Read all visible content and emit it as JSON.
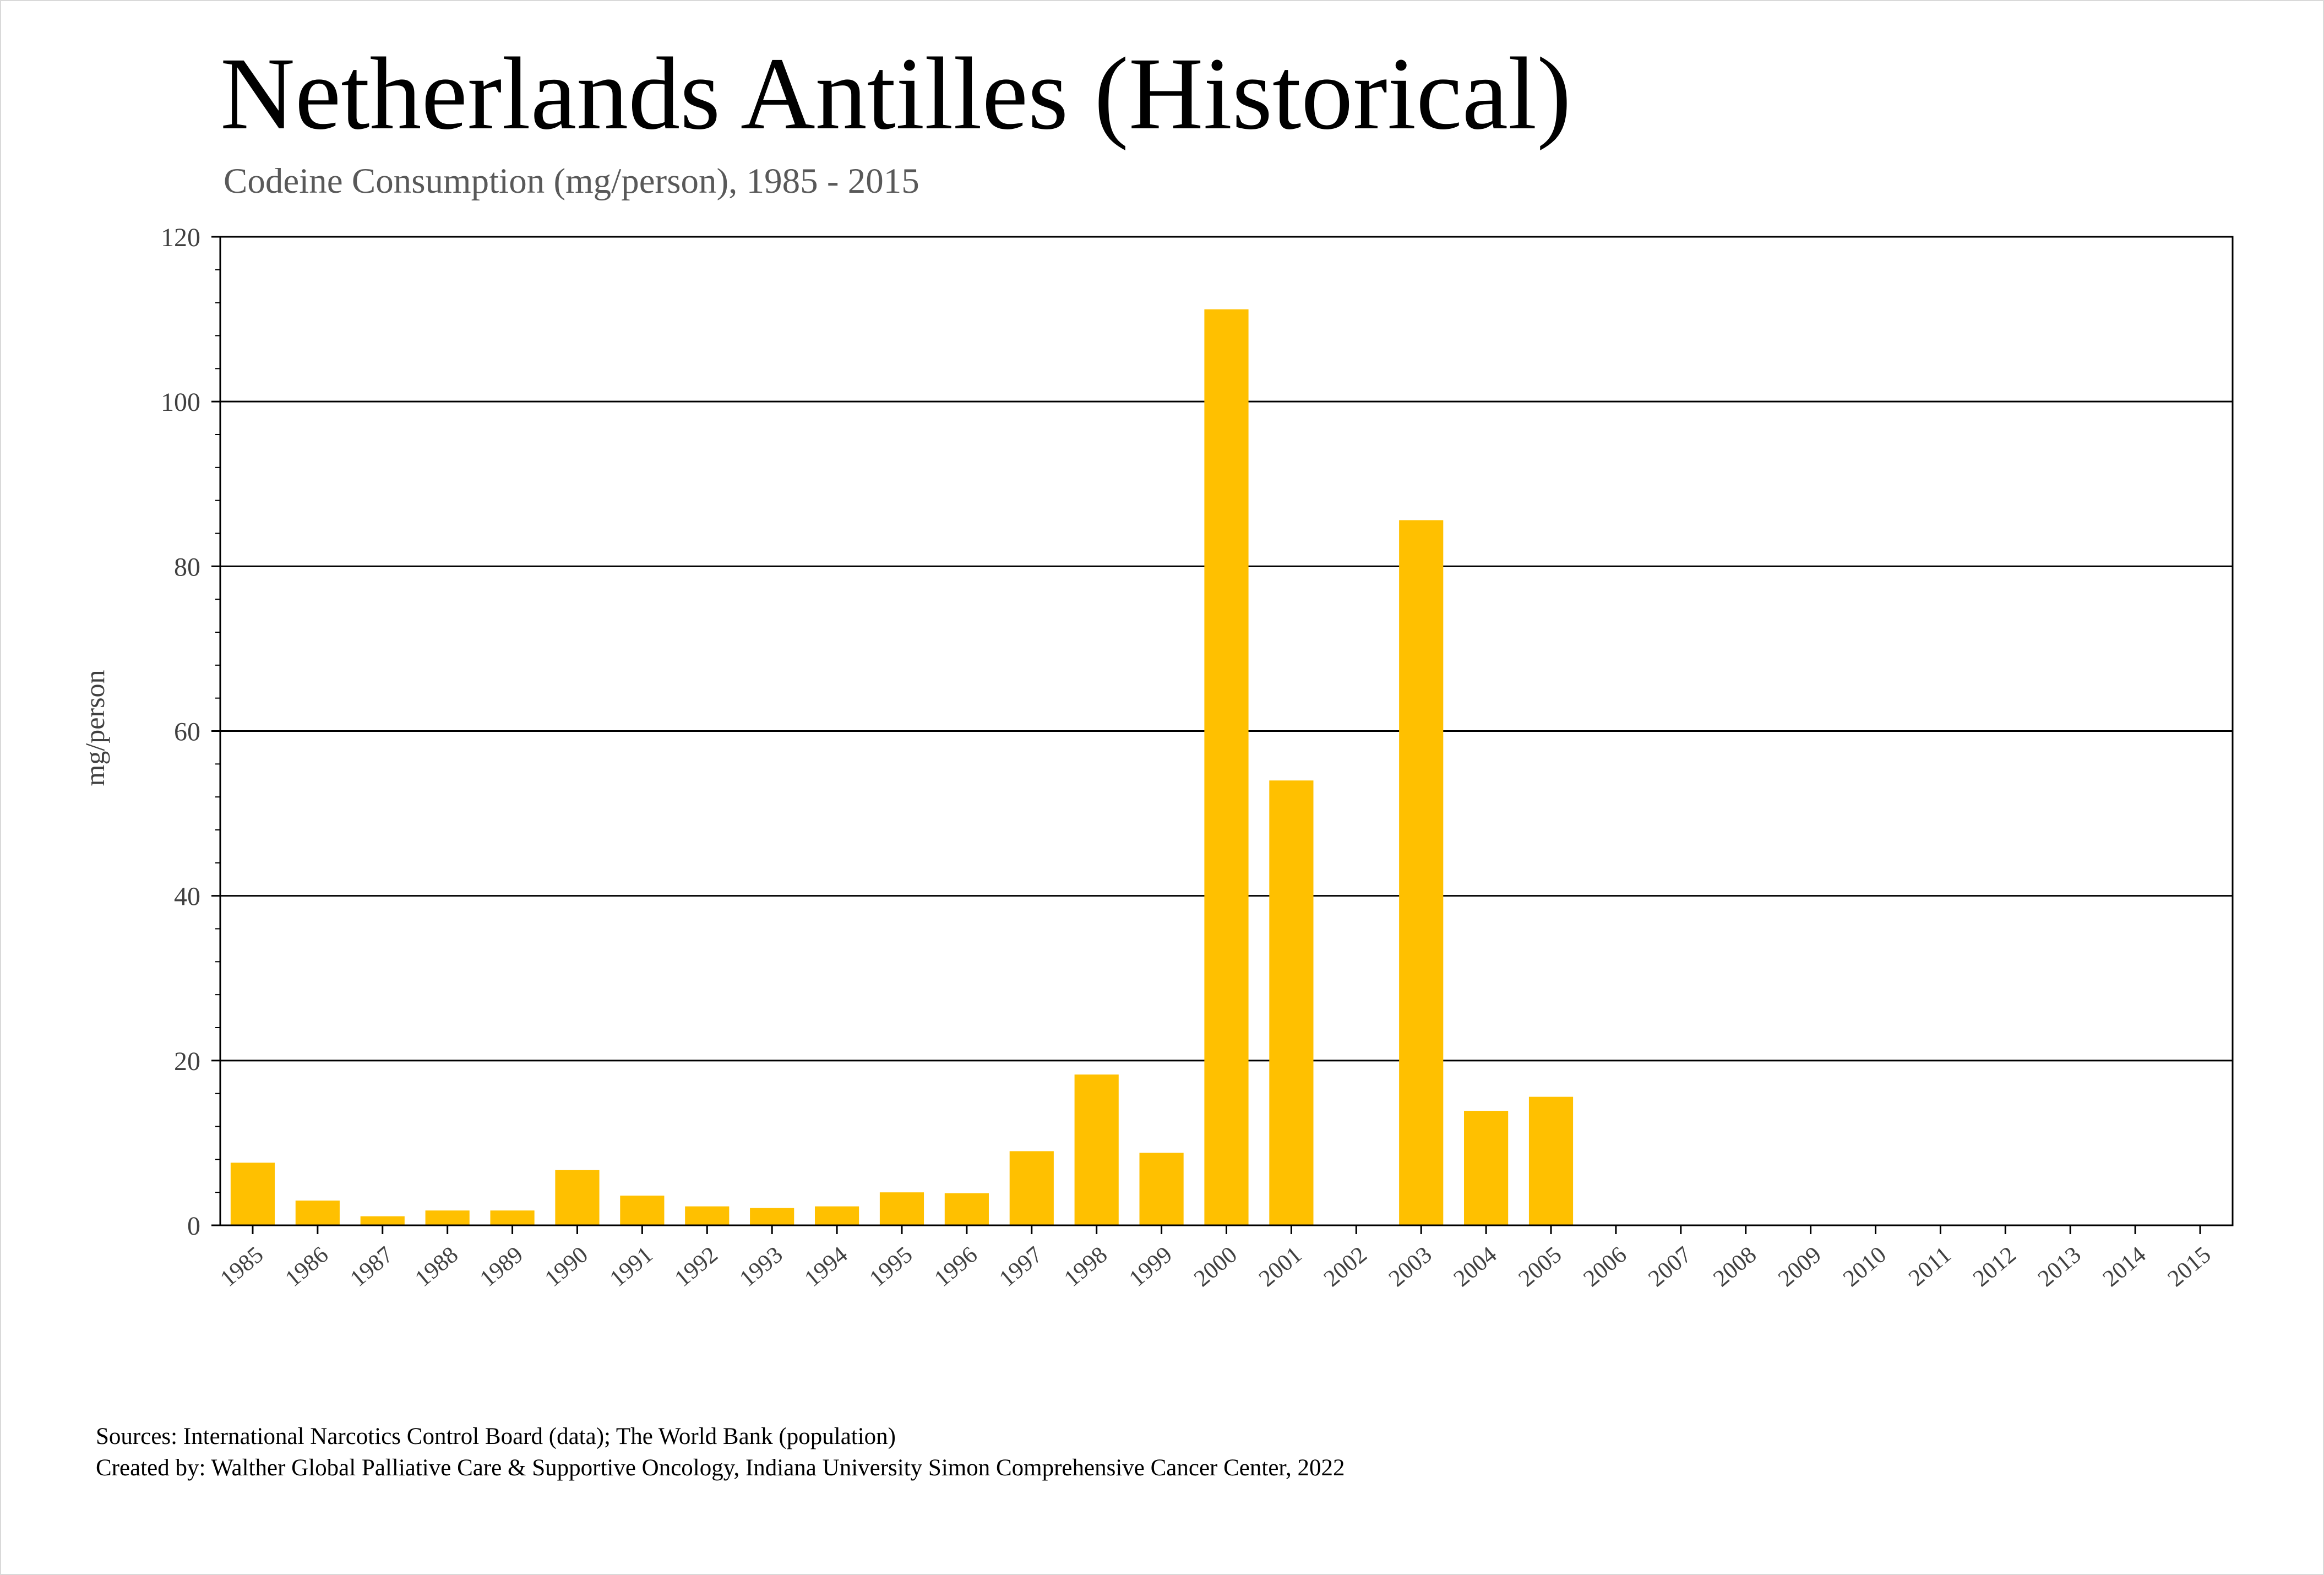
{
  "page": {
    "title": "Netherlands Antilles (Historical)",
    "subtitle": "Codeine Consumption (mg/person), 1985 - 2015",
    "source_line": "Sources: International Narcotics Control Board (data); The World Bank (population)",
    "credit_line": "Created by: Walther Global Palliative Care & Supportive Oncology, Indiana University Simon Comprehensive Cancer Center, 2022"
  },
  "colors": {
    "bar": "#FFC000",
    "axis": "#000000",
    "tick_text": "#404040"
  },
  "chart_data": {
    "type": "bar",
    "title": "Netherlands Antilles (Historical)",
    "subtitle": "Codeine Consumption (mg/person), 1985 - 2015",
    "xlabel": "",
    "ylabel": "mg/person",
    "ylim": [
      0,
      120
    ],
    "yticks": [
      0,
      20,
      40,
      60,
      80,
      100,
      120
    ],
    "grid": "horizontal major gridlines",
    "legend": "none",
    "categories": [
      "1985",
      "1986",
      "1987",
      "1988",
      "1989",
      "1990",
      "1991",
      "1992",
      "1993",
      "1994",
      "1995",
      "1996",
      "1997",
      "1998",
      "1999",
      "2000",
      "2001",
      "2002",
      "2003",
      "2004",
      "2005",
      "2006",
      "2007",
      "2008",
      "2009",
      "2010",
      "2011",
      "2012",
      "2013",
      "2014",
      "2015"
    ],
    "values": [
      7.6,
      3.0,
      1.1,
      1.8,
      1.8,
      6.7,
      3.6,
      2.3,
      2.1,
      2.3,
      4.0,
      3.9,
      9.0,
      18.3,
      8.8,
      111.2,
      54.0,
      0,
      85.6,
      13.9,
      15.6,
      0,
      0,
      0,
      0,
      0,
      0,
      0,
      0,
      0,
      0
    ]
  }
}
